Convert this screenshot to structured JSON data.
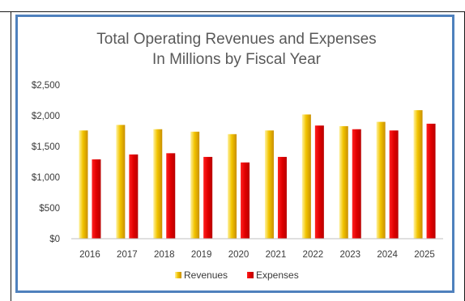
{
  "chart_data": {
    "type": "bar",
    "title": "Total Operating Revenues and Expenses",
    "subtitle": "In Millions by Fiscal Year",
    "xlabel": "",
    "ylabel": "",
    "categories": [
      "2016",
      "2017",
      "2018",
      "2019",
      "2020",
      "2021",
      "2022",
      "2023",
      "2024",
      "2025"
    ],
    "series": [
      {
        "name": "Revenues",
        "color": "#e8b100",
        "values": [
          1760,
          1850,
          1780,
          1740,
          1700,
          1760,
          2020,
          1830,
          1900,
          2090
        ]
      },
      {
        "name": "Expenses",
        "color": "#e00000",
        "values": [
          1290,
          1370,
          1390,
          1330,
          1240,
          1330,
          1840,
          1780,
          1760,
          1870
        ]
      }
    ],
    "ylim": [
      0,
      2500
    ],
    "yticks": [
      0,
      500,
      1000,
      1500,
      2000,
      2500
    ],
    "ytick_labels": [
      "$0",
      "$500",
      "$1,000",
      "$1,500",
      "$2,000",
      "$2,500"
    ],
    "grid": false,
    "legend": "bottom"
  }
}
